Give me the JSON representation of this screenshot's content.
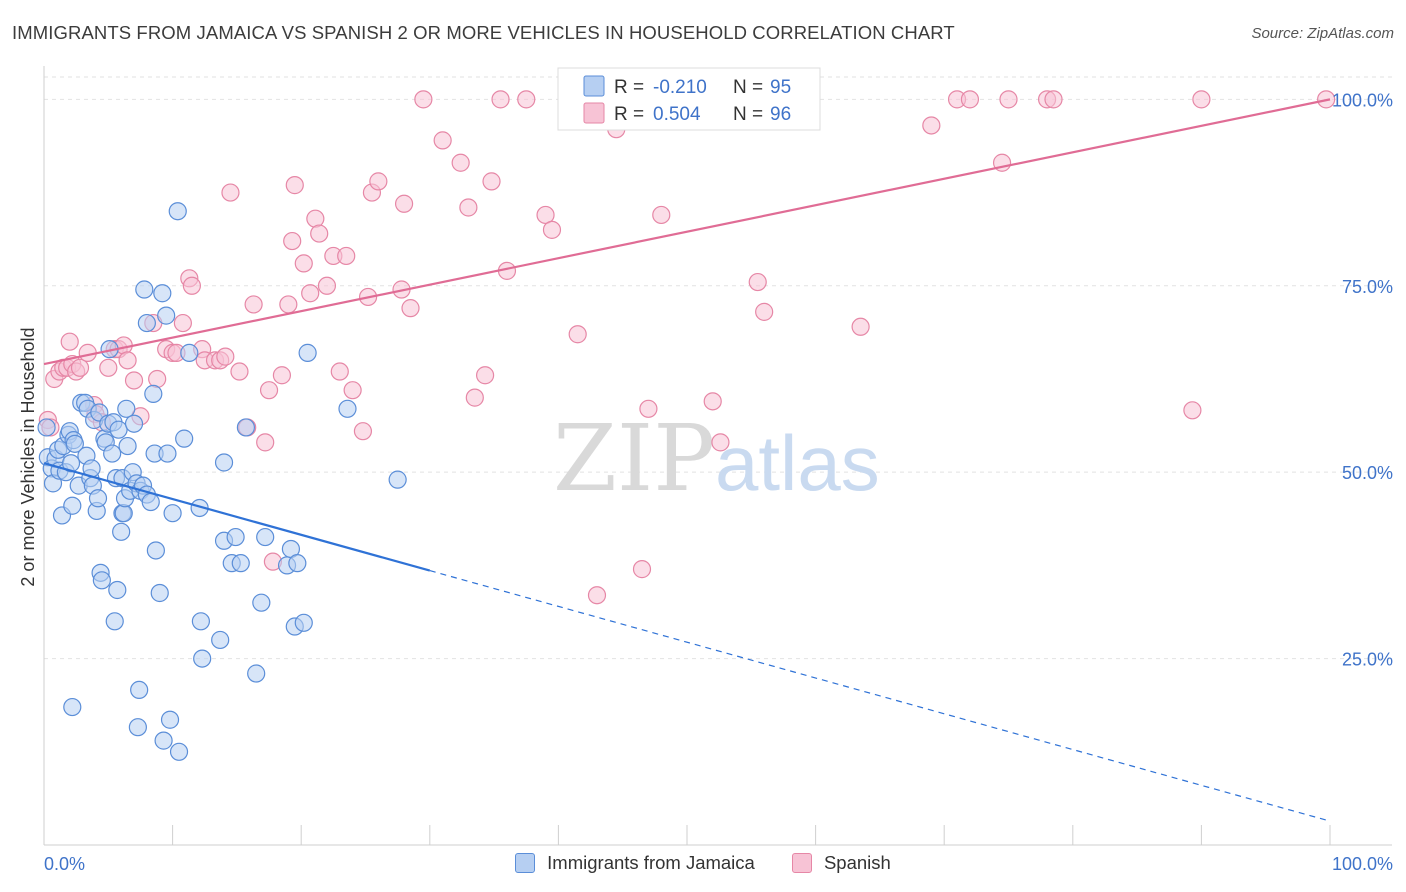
{
  "header": {
    "title": "IMMIGRANTS FROM JAMAICA VS SPANISH 2 OR MORE VEHICLES IN HOUSEHOLD CORRELATION CHART",
    "source": "Source: ZipAtlas.com"
  },
  "watermark": {
    "zip": "ZIP",
    "atlas": "atlas"
  },
  "legend": {
    "r_label": "R =",
    "n_label": "N =",
    "entries": [
      {
        "r": "-0.210",
        "n": "95"
      },
      {
        "r": "0.504",
        "n": "96"
      }
    ]
  },
  "chart_data": {
    "type": "scatter",
    "ylabel": "2 or more Vehicles in Household",
    "xlim": [
      0,
      100
    ],
    "ylim": [
      0,
      103
    ],
    "x_tick_labels": [
      "0.0%",
      "100.0%"
    ],
    "y_ticks": [
      {
        "value": 25,
        "label": "25.0%"
      },
      {
        "value": 50,
        "label": "50.0%"
      },
      {
        "value": 75,
        "label": "75.0%"
      },
      {
        "value": 100,
        "label": "100.0%"
      }
    ],
    "grid": true,
    "colors": {
      "jamaica": "#5b8ed8",
      "jamaica_fill": "#b6cff2",
      "jamaica_line": "#2f72d6",
      "spanish": "#e687a6",
      "spanish_fill": "#f7c3d5",
      "spanish_line": "#e06c95",
      "accent_text": "#3f73c9"
    },
    "series": [
      {
        "name": "Immigrants from Jamaica",
        "r": -0.21,
        "n": 95,
        "trend": {
          "solid_x": [
            0,
            30
          ],
          "y_at_0": 51.2,
          "y_at_100": 3.2
        },
        "points": [
          [
            0.2,
            56
          ],
          [
            0.3,
            52
          ],
          [
            0.6,
            50.5
          ],
          [
            0.7,
            48.5
          ],
          [
            0.9,
            51.8
          ],
          [
            1.1,
            53
          ],
          [
            1.2,
            50.2
          ],
          [
            1.4,
            44.2
          ],
          [
            1.5,
            53.5
          ],
          [
            1.7,
            50
          ],
          [
            1.9,
            55
          ],
          [
            2,
            55.5
          ],
          [
            2.1,
            51.2
          ],
          [
            2.2,
            18.5
          ],
          [
            2.3,
            54.3
          ],
          [
            2.4,
            53.8
          ],
          [
            2.2,
            45.5
          ],
          [
            2.7,
            48.2
          ],
          [
            2.9,
            59.3
          ],
          [
            3.2,
            59.3
          ],
          [
            3.3,
            52.2
          ],
          [
            3.4,
            58.5
          ],
          [
            3.6,
            49.2
          ],
          [
            3.7,
            50.5
          ],
          [
            3.8,
            48.2
          ],
          [
            3.9,
            57
          ],
          [
            4.1,
            44.8
          ],
          [
            4.2,
            46.5
          ],
          [
            4.3,
            58
          ],
          [
            4.4,
            36.5
          ],
          [
            4.5,
            35.5
          ],
          [
            4.7,
            54.5
          ],
          [
            4.8,
            54
          ],
          [
            5,
            56.5
          ],
          [
            5.1,
            66.5
          ],
          [
            5.3,
            52.5
          ],
          [
            5.4,
            56.7
          ],
          [
            5.5,
            30
          ],
          [
            5.6,
            49.2
          ],
          [
            5.7,
            34.2
          ],
          [
            5.8,
            55.7
          ],
          [
            6,
            42
          ],
          [
            6.1,
            44.5
          ],
          [
            6.1,
            49.2
          ],
          [
            6.2,
            44.5
          ],
          [
            6.3,
            46.5
          ],
          [
            6.4,
            58.5
          ],
          [
            6.5,
            53.5
          ],
          [
            6.7,
            47.5
          ],
          [
            6.9,
            50
          ],
          [
            7,
            56.5
          ],
          [
            7.2,
            48.5
          ],
          [
            7.4,
            20.8
          ],
          [
            7.3,
            15.8
          ],
          [
            7.5,
            47.5
          ],
          [
            7.7,
            48.2
          ],
          [
            7.8,
            74.5
          ],
          [
            8,
            47
          ],
          [
            8,
            70
          ],
          [
            8.3,
            46
          ],
          [
            8.5,
            60.5
          ],
          [
            8.6,
            52.5
          ],
          [
            8.7,
            39.5
          ],
          [
            9,
            33.8
          ],
          [
            9.2,
            74
          ],
          [
            9.3,
            14
          ],
          [
            9.5,
            71
          ],
          [
            9.6,
            52.5
          ],
          [
            9.8,
            16.8
          ],
          [
            10,
            44.5
          ],
          [
            10.4,
            85
          ],
          [
            10.5,
            12.5
          ],
          [
            10.9,
            54.5
          ],
          [
            11.3,
            66
          ],
          [
            12.1,
            45.2
          ],
          [
            12.2,
            30
          ],
          [
            12.3,
            25
          ],
          [
            13.7,
            27.5
          ],
          [
            14,
            51.3
          ],
          [
            14,
            40.8
          ],
          [
            14.6,
            37.8
          ],
          [
            14.9,
            41.3
          ],
          [
            15.3,
            37.8
          ],
          [
            15.7,
            56
          ],
          [
            16.5,
            23
          ],
          [
            16.9,
            32.5
          ],
          [
            17.2,
            41.3
          ],
          [
            18.9,
            37.5
          ],
          [
            19.2,
            39.7
          ],
          [
            19.5,
            29.3
          ],
          [
            19.7,
            37.8
          ],
          [
            20.2,
            29.8
          ],
          [
            20.5,
            66
          ],
          [
            23.6,
            58.5
          ],
          [
            27.5,
            49
          ]
        ]
      },
      {
        "name": "Spanish",
        "r": 0.504,
        "n": 96,
        "trend": {
          "solid_x": [
            0,
            100
          ],
          "y_at_0": 64.5,
          "y_at_100": 100
        },
        "points": [
          [
            0.3,
            57
          ],
          [
            0.5,
            56
          ],
          [
            0.8,
            62.5
          ],
          [
            1.2,
            63.5
          ],
          [
            1.5,
            64
          ],
          [
            1.8,
            64
          ],
          [
            2,
            67.5
          ],
          [
            2.2,
            64.5
          ],
          [
            2.5,
            63.5
          ],
          [
            2.8,
            64
          ],
          [
            3.4,
            66
          ],
          [
            3.9,
            59
          ],
          [
            4,
            57.8
          ],
          [
            4.5,
            56.7
          ],
          [
            5,
            64
          ],
          [
            5.5,
            66.5
          ],
          [
            5.8,
            66.5
          ],
          [
            6.2,
            67
          ],
          [
            6.5,
            65
          ],
          [
            7,
            62.3
          ],
          [
            7.5,
            57.5
          ],
          [
            8.5,
            70
          ],
          [
            8.8,
            62.5
          ],
          [
            9.5,
            66.5
          ],
          [
            10,
            66
          ],
          [
            10.3,
            66
          ],
          [
            10.8,
            70
          ],
          [
            11.3,
            76
          ],
          [
            11.5,
            75
          ],
          [
            12.3,
            66.5
          ],
          [
            12.5,
            65
          ],
          [
            13.3,
            65
          ],
          [
            13.7,
            65
          ],
          [
            14.1,
            65.5
          ],
          [
            14.5,
            87.5
          ],
          [
            15.2,
            63.5
          ],
          [
            15.8,
            56
          ],
          [
            16.3,
            72.5
          ],
          [
            17.2,
            54
          ],
          [
            17.5,
            61
          ],
          [
            17.8,
            38
          ],
          [
            18.5,
            63
          ],
          [
            19,
            72.5
          ],
          [
            19.3,
            81
          ],
          [
            19.5,
            88.5
          ],
          [
            20.2,
            78
          ],
          [
            20.7,
            74
          ],
          [
            21.1,
            84
          ],
          [
            21.4,
            82
          ],
          [
            22,
            75
          ],
          [
            22.5,
            79
          ],
          [
            23,
            63.5
          ],
          [
            23.5,
            79
          ],
          [
            24,
            61
          ],
          [
            24.8,
            55.5
          ],
          [
            25.2,
            73.5
          ],
          [
            25.5,
            87.5
          ],
          [
            26,
            89
          ],
          [
            27.8,
            74.5
          ],
          [
            28,
            86
          ],
          [
            28.5,
            72
          ],
          [
            29.5,
            100
          ],
          [
            31,
            94.5
          ],
          [
            32.4,
            91.5
          ],
          [
            33,
            85.5
          ],
          [
            33.5,
            60
          ],
          [
            34.3,
            63
          ],
          [
            34.8,
            89
          ],
          [
            35.5,
            100
          ],
          [
            36,
            77
          ],
          [
            37.5,
            100
          ],
          [
            39,
            84.5
          ],
          [
            39.5,
            82.5
          ],
          [
            41.5,
            68.5
          ],
          [
            43,
            33.5
          ],
          [
            44.5,
            96
          ],
          [
            46.5,
            37
          ],
          [
            47,
            58.5
          ],
          [
            48,
            84.5
          ],
          [
            50.5,
            100
          ],
          [
            52,
            59.5
          ],
          [
            52.6,
            54
          ],
          [
            55.5,
            100
          ],
          [
            55.5,
            75.5
          ],
          [
            56,
            71.5
          ],
          [
            63.5,
            69.5
          ],
          [
            69,
            96.5
          ],
          [
            71,
            100
          ],
          [
            72,
            100
          ],
          [
            74.5,
            91.5
          ],
          [
            75,
            100
          ],
          [
            78,
            100
          ],
          [
            78.5,
            100
          ],
          [
            90,
            100
          ],
          [
            89.3,
            58.3
          ],
          [
            99.7,
            100
          ]
        ]
      }
    ]
  }
}
